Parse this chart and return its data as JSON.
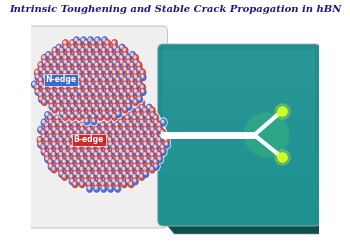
{
  "title": "Intrinsic Toughening and Stable Crack Propagation in hBN",
  "title_color": "#1a1a8c",
  "title_fontsize": 7.2,
  "bg_color": "#ffffff",
  "teal_face": "#1e9090",
  "teal_right": "#156868",
  "teal_bottom": "#0d5050",
  "crack_color": "#ffffff",
  "glow_color": "#ccff22",
  "glow_alpha": 0.25,
  "b_edge_label": "B-edge",
  "n_edge_label": "N-edge",
  "b_edge_box_color": "#cc2222",
  "n_edge_box_color": "#3366cc",
  "atom_blue": "#4466cc",
  "atom_red": "#cc4444",
  "bond_color": "#888888",
  "left_bg_color": "#eeeeee",
  "left_border_color": "#bbbbbb"
}
